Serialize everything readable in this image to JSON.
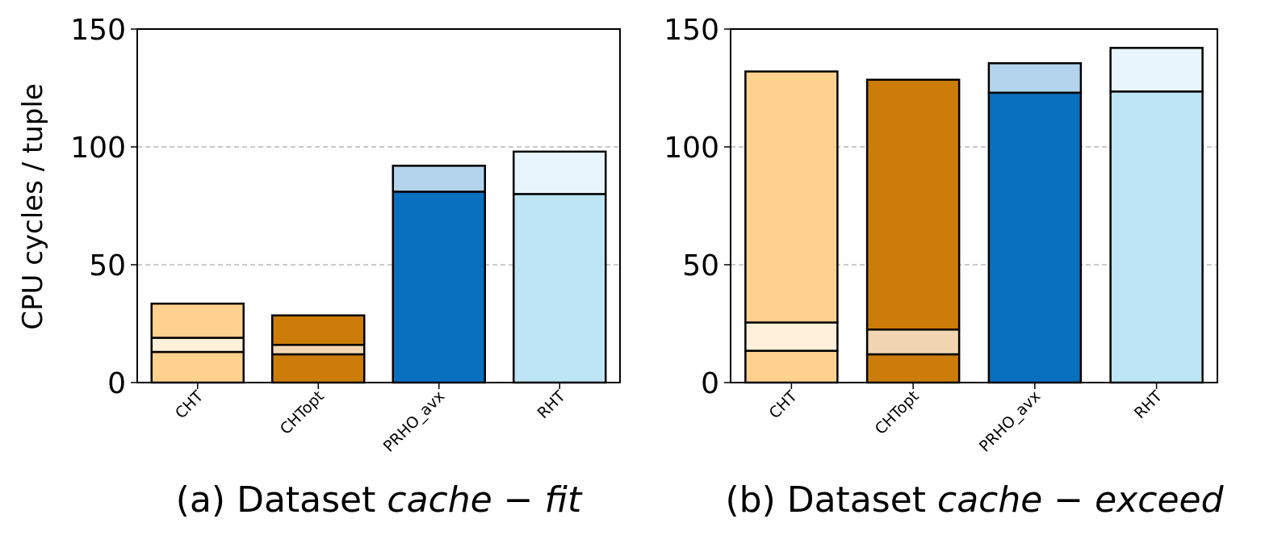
{
  "ylabel": "CPU cycles / tuple",
  "colors": {
    "CHT": [
      "#fed18e",
      "#fef0d9",
      "#fed18e"
    ],
    "CHTopt": [
      "#cc7c08",
      "#f2d6b3",
      "#cc7c08"
    ],
    "PRHO_avx": [
      "#0770bf",
      "#b3d4ec"
    ],
    "RHT": [
      "#bee5f6",
      "#e8f5fc"
    ],
    "grid": "#aaaaaa",
    "outline": "#000000"
  },
  "chart_data": [
    {
      "type": "bar",
      "stacked": true,
      "caption_prefix": "(a) Dataset ",
      "caption_math": "cache − fit",
      "categories": [
        "CHT",
        "CHTopt",
        "PRHO_avx",
        "RHT"
      ],
      "segments": [
        [
          13,
          6,
          14.5
        ],
        [
          12,
          4,
          12.5
        ],
        [
          81,
          11
        ],
        [
          80,
          18
        ]
      ],
      "ylim": [
        0,
        150
      ],
      "yticks": [
        0,
        50,
        100,
        150
      ],
      "grid": "horizontal dashed"
    },
    {
      "type": "bar",
      "stacked": true,
      "caption_prefix": "(b) Dataset ",
      "caption_math": "cache − exceed",
      "categories": [
        "CHT",
        "CHTopt",
        "PRHO_avx",
        "RHT"
      ],
      "segments": [
        [
          13.5,
          12,
          106.5
        ],
        [
          12,
          10.5,
          106
        ],
        [
          123,
          12.5
        ],
        [
          123.5,
          18.5
        ]
      ],
      "ylim": [
        0,
        150
      ],
      "yticks": [
        0,
        50,
        100,
        150
      ],
      "grid": "horizontal dashed"
    }
  ]
}
